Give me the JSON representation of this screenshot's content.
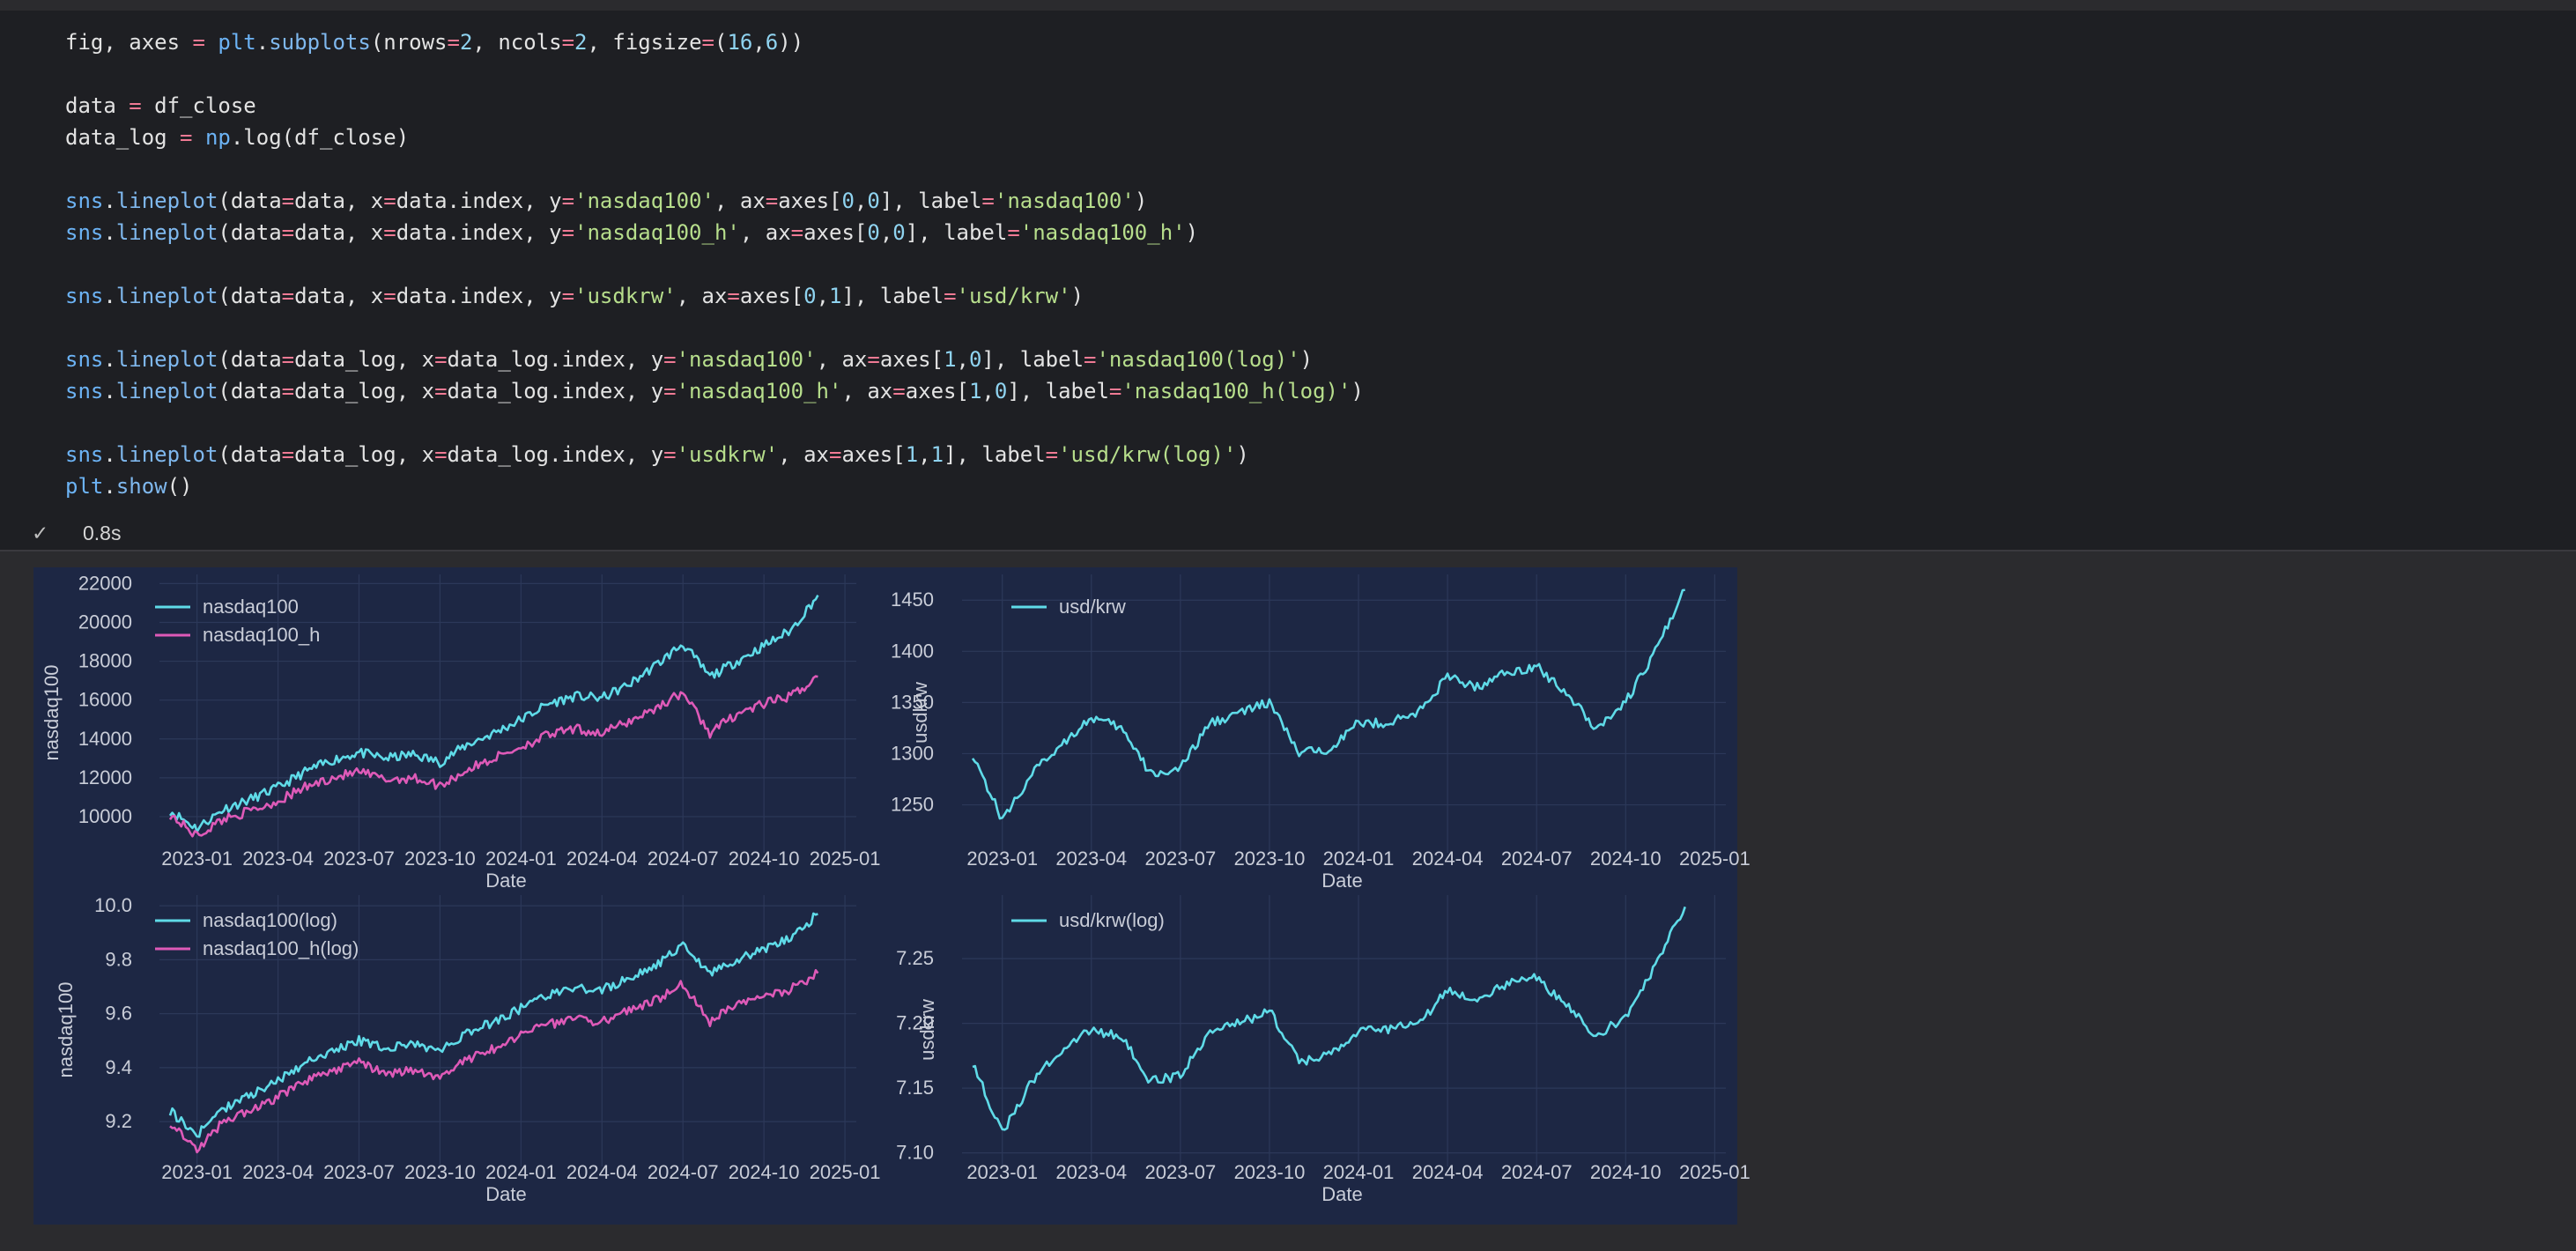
{
  "code_lines": [
    [
      [
        "var",
        "fig, axes "
      ],
      [
        "op",
        "="
      ],
      [
        "var",
        " "
      ],
      [
        "mod",
        "plt"
      ],
      [
        "var",
        "."
      ],
      [
        "fn",
        "subplots"
      ],
      [
        "var",
        "(nrows"
      ],
      [
        "op",
        "="
      ],
      [
        "num",
        "2"
      ],
      [
        "var",
        ", ncols"
      ],
      [
        "op",
        "="
      ],
      [
        "num",
        "2"
      ],
      [
        "var",
        ", figsize"
      ],
      [
        "op",
        "="
      ],
      [
        "var",
        "("
      ],
      [
        "num",
        "16"
      ],
      [
        "var",
        ","
      ],
      [
        "num",
        "6"
      ],
      [
        "var",
        "))"
      ]
    ],
    [],
    [
      [
        "var",
        "data "
      ],
      [
        "op",
        "="
      ],
      [
        "var",
        " df_close"
      ]
    ],
    [
      [
        "var",
        "data_log "
      ],
      [
        "op",
        "="
      ],
      [
        "var",
        " "
      ],
      [
        "mod",
        "np"
      ],
      [
        "var",
        ".log(df_close)"
      ]
    ],
    [],
    [
      [
        "mod",
        "sns"
      ],
      [
        "var",
        "."
      ],
      [
        "fn",
        "lineplot"
      ],
      [
        "var",
        "(data"
      ],
      [
        "op",
        "="
      ],
      [
        "var",
        "data, x"
      ],
      [
        "op",
        "="
      ],
      [
        "var",
        "data.index, y"
      ],
      [
        "op",
        "="
      ],
      [
        "str",
        "'nasdaq100'"
      ],
      [
        "var",
        ", ax"
      ],
      [
        "op",
        "="
      ],
      [
        "var",
        "axes["
      ],
      [
        "num",
        "0"
      ],
      [
        "var",
        ","
      ],
      [
        "num",
        "0"
      ],
      [
        "var",
        "], label"
      ],
      [
        "op",
        "="
      ],
      [
        "str",
        "'nasdaq100'"
      ],
      [
        "var",
        ")"
      ]
    ],
    [
      [
        "mod",
        "sns"
      ],
      [
        "var",
        "."
      ],
      [
        "fn",
        "lineplot"
      ],
      [
        "var",
        "(data"
      ],
      [
        "op",
        "="
      ],
      [
        "var",
        "data, x"
      ],
      [
        "op",
        "="
      ],
      [
        "var",
        "data.index, y"
      ],
      [
        "op",
        "="
      ],
      [
        "str",
        "'nasdaq100_h'"
      ],
      [
        "var",
        ", ax"
      ],
      [
        "op",
        "="
      ],
      [
        "var",
        "axes["
      ],
      [
        "num",
        "0"
      ],
      [
        "var",
        ","
      ],
      [
        "num",
        "0"
      ],
      [
        "var",
        "], label"
      ],
      [
        "op",
        "="
      ],
      [
        "str",
        "'nasdaq100_h'"
      ],
      [
        "var",
        ")"
      ]
    ],
    [],
    [
      [
        "mod",
        "sns"
      ],
      [
        "var",
        "."
      ],
      [
        "fn",
        "lineplot"
      ],
      [
        "var",
        "(data"
      ],
      [
        "op",
        "="
      ],
      [
        "var",
        "data, x"
      ],
      [
        "op",
        "="
      ],
      [
        "var",
        "data.index, y"
      ],
      [
        "op",
        "="
      ],
      [
        "str",
        "'usdkrw'"
      ],
      [
        "var",
        ", ax"
      ],
      [
        "op",
        "="
      ],
      [
        "var",
        "axes["
      ],
      [
        "num",
        "0"
      ],
      [
        "var",
        ","
      ],
      [
        "num",
        "1"
      ],
      [
        "var",
        "], label"
      ],
      [
        "op",
        "="
      ],
      [
        "str",
        "'usd/krw'"
      ],
      [
        "var",
        ")"
      ]
    ],
    [],
    [
      [
        "mod",
        "sns"
      ],
      [
        "var",
        "."
      ],
      [
        "fn",
        "lineplot"
      ],
      [
        "var",
        "(data"
      ],
      [
        "op",
        "="
      ],
      [
        "var",
        "data_log, x"
      ],
      [
        "op",
        "="
      ],
      [
        "var",
        "data_log.index, y"
      ],
      [
        "op",
        "="
      ],
      [
        "str",
        "'nasdaq100'"
      ],
      [
        "var",
        ", ax"
      ],
      [
        "op",
        "="
      ],
      [
        "var",
        "axes["
      ],
      [
        "num",
        "1"
      ],
      [
        "var",
        ","
      ],
      [
        "num",
        "0"
      ],
      [
        "var",
        "], label"
      ],
      [
        "op",
        "="
      ],
      [
        "str",
        "'nasdaq100(log)'"
      ],
      [
        "var",
        ")"
      ]
    ],
    [
      [
        "mod",
        "sns"
      ],
      [
        "var",
        "."
      ],
      [
        "fn",
        "lineplot"
      ],
      [
        "var",
        "(data"
      ],
      [
        "op",
        "="
      ],
      [
        "var",
        "data_log, x"
      ],
      [
        "op",
        "="
      ],
      [
        "var",
        "data_log.index, y"
      ],
      [
        "op",
        "="
      ],
      [
        "str",
        "'nasdaq100_h'"
      ],
      [
        "var",
        ", ax"
      ],
      [
        "op",
        "="
      ],
      [
        "var",
        "axes["
      ],
      [
        "num",
        "1"
      ],
      [
        "var",
        ","
      ],
      [
        "num",
        "0"
      ],
      [
        "var",
        "], label"
      ],
      [
        "op",
        "="
      ],
      [
        "str",
        "'nasdaq100_h(log)'"
      ],
      [
        "var",
        ")"
      ]
    ],
    [],
    [
      [
        "mod",
        "sns"
      ],
      [
        "var",
        "."
      ],
      [
        "fn",
        "lineplot"
      ],
      [
        "var",
        "(data"
      ],
      [
        "op",
        "="
      ],
      [
        "var",
        "data_log, x"
      ],
      [
        "op",
        "="
      ],
      [
        "var",
        "data_log.index, y"
      ],
      [
        "op",
        "="
      ],
      [
        "str",
        "'usdkrw'"
      ],
      [
        "var",
        ", ax"
      ],
      [
        "op",
        "="
      ],
      [
        "var",
        "axes["
      ],
      [
        "num",
        "1"
      ],
      [
        "var",
        ","
      ],
      [
        "num",
        "1"
      ],
      [
        "var",
        "], label"
      ],
      [
        "op",
        "="
      ],
      [
        "str",
        "'usd/krw(log)'"
      ],
      [
        "var",
        ")"
      ]
    ],
    [
      [
        "mod",
        "plt"
      ],
      [
        "var",
        "."
      ],
      [
        "fn",
        "show"
      ],
      [
        "var",
        "()"
      ]
    ]
  ],
  "status": {
    "icon": "check-icon",
    "time": "0.8s"
  },
  "colors": {
    "cyan": "#5fdbe8",
    "pink": "#de5ab8",
    "plot_bg": "#1d2744",
    "grid": "#2c3859",
    "tick": "#c9cdd8"
  },
  "chart_data": [
    {
      "type": "line",
      "xlabel": "Date",
      "ylabel": "nasdaq100",
      "x_ticks": [
        "2023-01",
        "2023-04",
        "2023-07",
        "2023-10",
        "2024-01",
        "2024-04",
        "2024-07",
        "2024-10",
        "2025-01"
      ],
      "y_ticks": [
        10000,
        12000,
        14000,
        16000,
        18000,
        20000,
        22000
      ],
      "ylim": [
        8500,
        22200
      ],
      "legend": "top-left",
      "x": [
        "2022-12",
        "2023-01",
        "2023-02",
        "2023-03",
        "2023-04",
        "2023-05",
        "2023-06",
        "2023-07",
        "2023-08",
        "2023-09",
        "2023-10",
        "2023-11",
        "2023-12",
        "2024-01",
        "2024-02",
        "2024-03",
        "2024-04",
        "2024-05",
        "2024-06",
        "2024-07",
        "2024-08",
        "2024-09",
        "2024-10",
        "2024-11",
        "2024-12"
      ],
      "series": [
        {
          "name": "nasdaq100",
          "color": "#5fdbe8",
          "values": [
            10300,
            9400,
            10400,
            10900,
            11500,
            12300,
            12900,
            13300,
            13000,
            13200,
            12800,
            13700,
            14300,
            15000,
            15800,
            16200,
            16100,
            16800,
            17800,
            18900,
            17200,
            18000,
            18800,
            19600,
            21400
          ]
        },
        {
          "name": "nasdaq100_h",
          "color": "#de5ab8",
          "values": [
            10100,
            9000,
            9900,
            10300,
            10800,
            11500,
            12000,
            12300,
            11900,
            12000,
            11600,
            12400,
            13000,
            13600,
            14200,
            14500,
            14300,
            14900,
            15600,
            16400,
            14300,
            15300,
            15800,
            16200,
            17200
          ]
        }
      ]
    },
    {
      "type": "line",
      "xlabel": "Date",
      "ylabel": "usdkrw",
      "x_ticks": [
        "2023-01",
        "2023-04",
        "2023-07",
        "2023-10",
        "2024-01",
        "2024-04",
        "2024-07",
        "2024-10",
        "2025-01"
      ],
      "y_ticks": [
        1250,
        1300,
        1350,
        1400,
        1450
      ],
      "ylim": [
        1210,
        1470
      ],
      "legend": "top-left",
      "x": [
        "2022-12",
        "2023-01",
        "2023-02",
        "2023-03",
        "2023-04",
        "2023-05",
        "2023-06",
        "2023-07",
        "2023-08",
        "2023-09",
        "2023-10",
        "2023-11",
        "2023-12",
        "2024-01",
        "2024-02",
        "2024-03",
        "2024-04",
        "2024-05",
        "2024-06",
        "2024-07",
        "2024-08",
        "2024-09",
        "2024-10",
        "2024-11",
        "2024-12"
      ],
      "series": [
        {
          "name": "usd/krw",
          "color": "#5fdbe8",
          "values": [
            1300,
            1235,
            1280,
            1310,
            1335,
            1325,
            1280,
            1285,
            1330,
            1340,
            1350,
            1300,
            1305,
            1330,
            1330,
            1340,
            1375,
            1365,
            1380,
            1385,
            1360,
            1325,
            1350,
            1400,
            1460
          ]
        }
      ]
    },
    {
      "type": "line",
      "xlabel": "Date",
      "ylabel": "nasdaq100",
      "x_ticks": [
        "2023-01",
        "2023-04",
        "2023-07",
        "2023-10",
        "2024-01",
        "2024-04",
        "2024-07",
        "2024-10",
        "2025-01"
      ],
      "y_ticks": [
        9.2,
        9.4,
        9.6,
        9.8,
        10.0
      ],
      "ylim": [
        9.06,
        10.02
      ],
      "legend": "top-left",
      "x": [
        "2022-12",
        "2023-01",
        "2023-02",
        "2023-03",
        "2023-04",
        "2023-05",
        "2023-06",
        "2023-07",
        "2023-08",
        "2023-09",
        "2023-10",
        "2023-11",
        "2023-12",
        "2024-01",
        "2024-02",
        "2024-03",
        "2024-04",
        "2024-05",
        "2024-06",
        "2024-07",
        "2024-08",
        "2024-09",
        "2024-10",
        "2024-11",
        "2024-12"
      ],
      "series": [
        {
          "name": "nasdaq100(log)",
          "color": "#5fdbe8",
          "values": [
            9.24,
            9.15,
            9.25,
            9.3,
            9.35,
            9.42,
            9.46,
            9.5,
            9.47,
            9.49,
            9.46,
            9.53,
            9.57,
            9.62,
            9.67,
            9.69,
            9.69,
            9.73,
            9.78,
            9.85,
            9.75,
            9.8,
            9.84,
            9.88,
            9.97
          ]
        },
        {
          "name": "nasdaq100_h(log)",
          "color": "#de5ab8",
          "values": [
            9.2,
            9.1,
            9.2,
            9.24,
            9.29,
            9.35,
            9.39,
            9.42,
            9.38,
            9.39,
            9.36,
            9.43,
            9.47,
            9.52,
            9.56,
            9.58,
            9.57,
            9.61,
            9.65,
            9.71,
            9.57,
            9.64,
            9.67,
            9.69,
            9.75
          ]
        }
      ]
    },
    {
      "type": "line",
      "xlabel": "Date",
      "ylabel": "usdkrw",
      "x_ticks": [
        "2023-01",
        "2023-04",
        "2023-07",
        "2023-10",
        "2024-01",
        "2024-04",
        "2024-07",
        "2024-10",
        "2025-01"
      ],
      "y_ticks": [
        7.1,
        7.15,
        7.2,
        7.25
      ],
      "ylim": [
        7.095,
        7.295
      ],
      "legend": "top-left",
      "x": [
        "2022-12",
        "2023-01",
        "2023-02",
        "2023-03",
        "2023-04",
        "2023-05",
        "2023-06",
        "2023-07",
        "2023-08",
        "2023-09",
        "2023-10",
        "2023-11",
        "2023-12",
        "2024-01",
        "2024-02",
        "2024-03",
        "2024-04",
        "2024-05",
        "2024-06",
        "2024-07",
        "2024-08",
        "2024-09",
        "2024-10",
        "2024-11",
        "2024-12"
      ],
      "series": [
        {
          "name": "usd/krw(log)",
          "color": "#5fdbe8",
          "values": [
            7.17,
            7.115,
            7.155,
            7.18,
            7.195,
            7.19,
            7.155,
            7.16,
            7.195,
            7.2,
            7.21,
            7.17,
            7.175,
            7.195,
            7.195,
            7.2,
            7.225,
            7.22,
            7.23,
            7.235,
            7.215,
            7.19,
            7.205,
            7.245,
            7.29
          ]
        }
      ]
    }
  ]
}
